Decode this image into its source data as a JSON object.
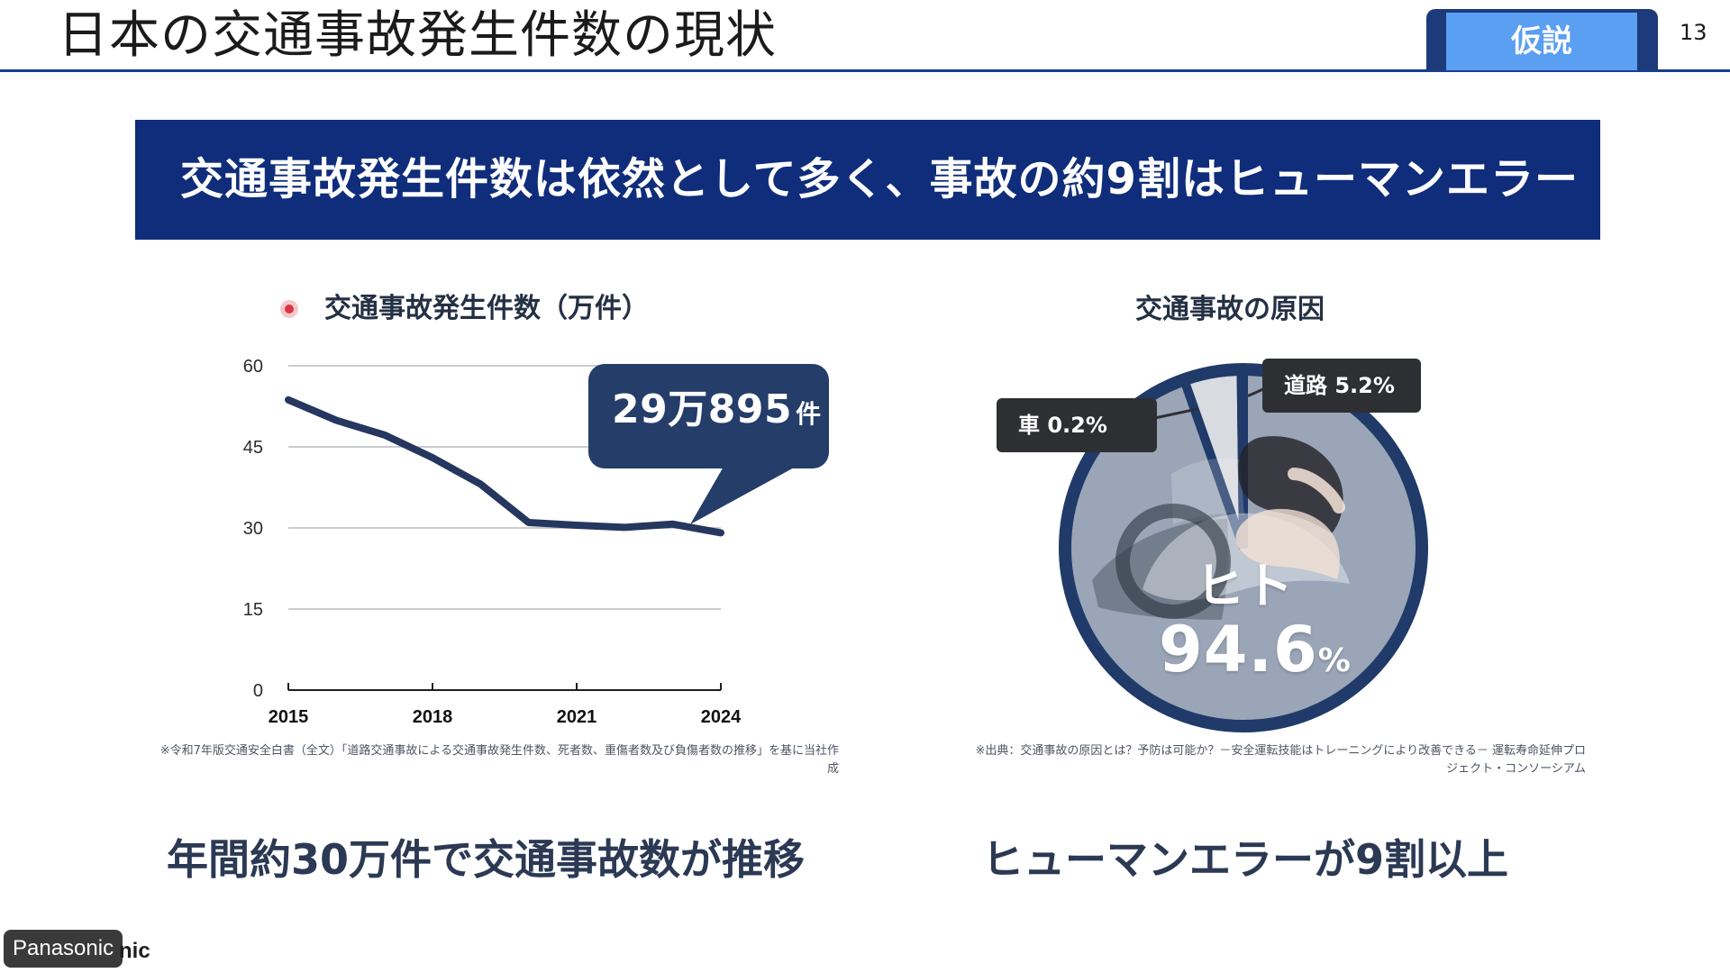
{
  "slide": {
    "title": "日本の交通事故発生件数の現状",
    "tag": "仮説",
    "page_number": "13",
    "headline": "交通事故発生件数は依然として多く、事故の約9割はヒューマンエラー",
    "brand": "Panasonic",
    "brand_suffix": "nic"
  },
  "left_panel": {
    "legend": "交通事故発生件数（万件）",
    "callout_value": "29万895",
    "callout_unit": "件",
    "source_note": "※令和7年版交通安全白書（全文）「道路交通事故による交通事故発生件数、死者数、重傷者数及び負傷者数の推移」を基に当社作成",
    "summary": "年間約30万件で交通事故数が推移"
  },
  "right_panel": {
    "title": "交通事故の原因",
    "car_label": "車 0.2%",
    "road_label": "道路 5.2%",
    "main_name": "ヒト",
    "main_value": "94.6",
    "main_pct": "%",
    "source_note": "※出典：交通事故の原因とは？予防は可能か？－安全運転技能はトレーニングにより改善できる－ 運転寿命延伸プロジェクト・コンソーシアム",
    "summary": "ヒューマンエラーが9割以上"
  },
  "chart_data": [
    {
      "type": "line",
      "title": "交通事故発生件数（万件）",
      "x": [
        2015,
        2016,
        2017,
        2018,
        2019,
        2020,
        2021,
        2022,
        2023,
        2024
      ],
      "series": [
        {
          "name": "交通事故発生件数（万件）",
          "values": [
            53.7,
            49.9,
            47.2,
            43.0,
            38.1,
            31.0,
            30.5,
            30.1,
            30.7,
            29.1
          ]
        }
      ],
      "xlim": [
        2015,
        2024
      ],
      "ylim": [
        0,
        60
      ],
      "x_ticks": [
        2015,
        2018,
        2021,
        2024
      ],
      "y_ticks": [
        0,
        15,
        30,
        45,
        60
      ],
      "grid": true,
      "colors": {
        "line": "#25375f",
        "grid": "#c9ccd1",
        "axis": "#1f1f1f"
      }
    },
    {
      "type": "pie",
      "title": "交通事故の原因",
      "categories": [
        "ヒト",
        "道路",
        "車"
      ],
      "values": [
        94.6,
        5.2,
        0.2
      ],
      "colors": {
        "border": "#203a69",
        "main": "#9aa6b7",
        "road": "#d8dbe0",
        "car": "#7d8896"
      }
    }
  ]
}
